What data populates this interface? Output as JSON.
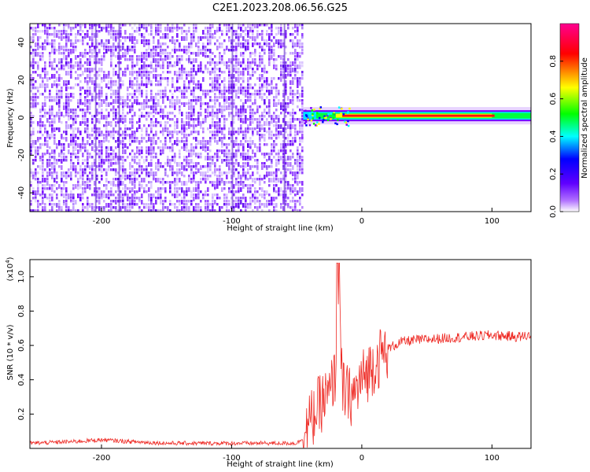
{
  "title": "C2E1.2023.208.06.56.G25",
  "chart_data": [
    {
      "type": "heatmap",
      "xlabel": "Height of straight line (km)",
      "ylabel": "Frequency (Hz)",
      "xlim": [
        -255,
        130
      ],
      "ylim": [
        -50,
        50
      ],
      "xticks": [
        -200,
        -100,
        0,
        100
      ],
      "yticks": [
        -40,
        -20,
        0,
        20,
        40
      ],
      "noise_region_x": [
        -255,
        -45
      ],
      "signal_band": {
        "x_start": -45,
        "x_end": 130,
        "freq_hz": 1
      },
      "grid": false,
      "colorbar": {
        "label": "Normalized spectral amplitude",
        "range": [
          0,
          1
        ],
        "ticks": [
          "0.0",
          "0.2",
          "0.4",
          "0.6",
          "0.8"
        ],
        "colors": [
          "#ffffff",
          "#7a00ff",
          "#0000ff",
          "#00ffff",
          "#00ff00",
          "#ffff00",
          "#ff0000",
          "#ff00a0"
        ]
      }
    },
    {
      "type": "line",
      "xlabel": "Height of straight line (km)",
      "ylabel": "SNR (10 * v/v)",
      "yscale_label": "(x10",
      "yscale_exp": "4",
      "xlim": [
        -255,
        130
      ],
      "ylim": [
        0,
        1.1
      ],
      "xticks": [
        -200,
        -100,
        0,
        100
      ],
      "yticks": [
        "0.2",
        "0.4",
        "0.6",
        "0.8",
        "1.0"
      ],
      "color": "#ee2a24",
      "grid": false,
      "series": [
        {
          "x": [
            -255,
            -220,
            -200,
            -180,
            -150,
            -120,
            -100,
            -80,
            -60,
            -50,
            -45,
            -40,
            -35,
            -30,
            -25,
            -20,
            -18,
            -15,
            -10,
            -5,
            0,
            10,
            20,
            30,
            40,
            60,
            80,
            100,
            120,
            130
          ],
          "values": [
            0.03,
            0.04,
            0.05,
            0.04,
            0.03,
            0.03,
            0.03,
            0.03,
            0.03,
            0.03,
            0.06,
            0.15,
            0.22,
            0.28,
            0.3,
            0.45,
            0.9,
            0.35,
            0.3,
            0.32,
            0.4,
            0.5,
            0.58,
            0.62,
            0.63,
            0.64,
            0.65,
            0.66,
            0.65,
            0.66
          ]
        }
      ]
    }
  ]
}
